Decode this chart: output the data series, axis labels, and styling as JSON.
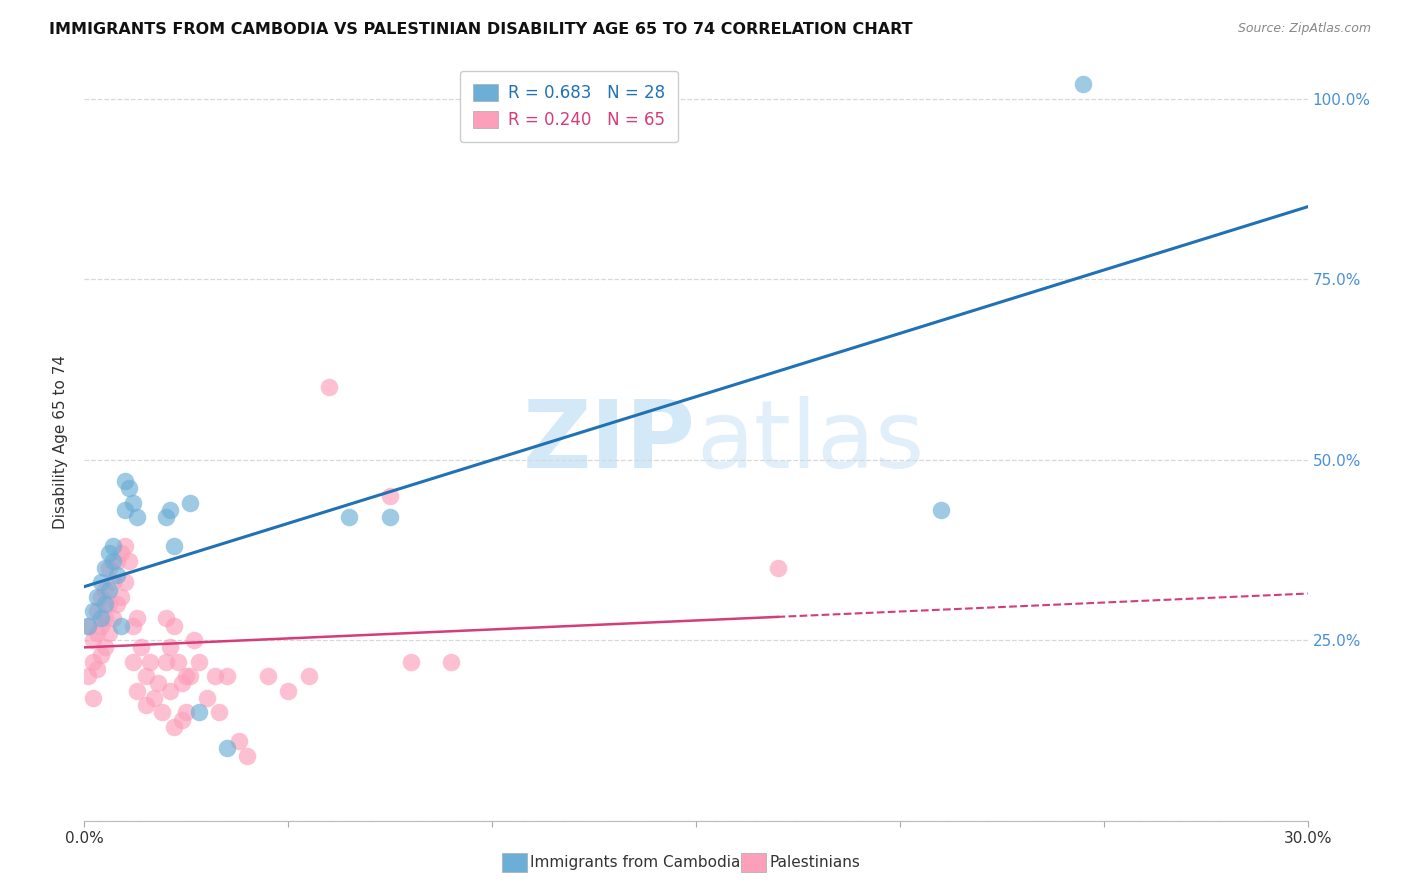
{
  "title": "IMMIGRANTS FROM CAMBODIA VS PALESTINIAN DISABILITY AGE 65 TO 74 CORRELATION CHART",
  "source": "Source: ZipAtlas.com",
  "ylabel": "Disability Age 65 to 74",
  "xlim": [
    0.0,
    0.3
  ],
  "ylim": [
    0.0,
    1.05
  ],
  "xticks": [
    0.0,
    0.05,
    0.1,
    0.15,
    0.2,
    0.25,
    0.3
  ],
  "xtick_labels": [
    "0.0%",
    "",
    "",
    "",
    "",
    "",
    "30.0%"
  ],
  "ytick_vals": [
    0.0,
    0.25,
    0.5,
    0.75,
    1.0
  ],
  "ytick_labels_right": [
    "",
    "25.0%",
    "50.0%",
    "75.0%",
    "100.0%"
  ],
  "legend_labels": [
    "Immigrants from Cambodia",
    "Palestinians"
  ],
  "R_cambodia": 0.683,
  "N_cambodia": 28,
  "R_palestinian": 0.24,
  "N_palestinian": 65,
  "cambodia_color": "#6baed6",
  "palestinian_color": "#fc9fba",
  "cambodia_line_color": "#2171b5",
  "palestinian_line_color": "#d63b7a",
  "background_color": "#ffffff",
  "grid_color": "#d8d8d8",
  "watermark_color": "#d4e9f7",
  "cambodia_x": [
    0.001,
    0.002,
    0.003,
    0.004,
    0.004,
    0.005,
    0.005,
    0.006,
    0.006,
    0.007,
    0.007,
    0.008,
    0.009,
    0.01,
    0.01,
    0.011,
    0.012,
    0.013,
    0.02,
    0.021,
    0.022,
    0.026,
    0.028,
    0.035,
    0.065,
    0.075,
    0.21,
    0.245
  ],
  "cambodia_y": [
    0.27,
    0.29,
    0.31,
    0.28,
    0.33,
    0.35,
    0.3,
    0.37,
    0.32,
    0.36,
    0.38,
    0.34,
    0.27,
    0.43,
    0.47,
    0.46,
    0.44,
    0.42,
    0.42,
    0.43,
    0.38,
    0.44,
    0.15,
    0.1,
    0.42,
    0.42,
    0.43,
    1.02
  ],
  "palestinian_x": [
    0.001,
    0.001,
    0.002,
    0.002,
    0.002,
    0.003,
    0.003,
    0.003,
    0.004,
    0.004,
    0.004,
    0.005,
    0.005,
    0.005,
    0.006,
    0.006,
    0.006,
    0.007,
    0.007,
    0.008,
    0.008,
    0.009,
    0.009,
    0.01,
    0.01,
    0.011,
    0.012,
    0.012,
    0.013,
    0.013,
    0.014,
    0.015,
    0.015,
    0.016,
    0.017,
    0.018,
    0.019,
    0.02,
    0.02,
    0.021,
    0.021,
    0.022,
    0.022,
    0.023,
    0.024,
    0.024,
    0.025,
    0.025,
    0.026,
    0.027,
    0.028,
    0.03,
    0.032,
    0.033,
    0.035,
    0.038,
    0.04,
    0.045,
    0.05,
    0.055,
    0.06,
    0.075,
    0.08,
    0.09,
    0.17
  ],
  "palestinian_y": [
    0.27,
    0.2,
    0.25,
    0.22,
    0.17,
    0.29,
    0.26,
    0.21,
    0.31,
    0.27,
    0.23,
    0.32,
    0.28,
    0.24,
    0.35,
    0.3,
    0.26,
    0.33,
    0.28,
    0.36,
    0.3,
    0.37,
    0.31,
    0.38,
    0.33,
    0.36,
    0.22,
    0.27,
    0.28,
    0.18,
    0.24,
    0.2,
    0.16,
    0.22,
    0.17,
    0.19,
    0.15,
    0.22,
    0.28,
    0.24,
    0.18,
    0.27,
    0.13,
    0.22,
    0.19,
    0.14,
    0.2,
    0.15,
    0.2,
    0.25,
    0.22,
    0.17,
    0.2,
    0.15,
    0.2,
    0.11,
    0.09,
    0.2,
    0.18,
    0.2,
    0.6,
    0.45,
    0.22,
    0.22,
    0.35
  ]
}
